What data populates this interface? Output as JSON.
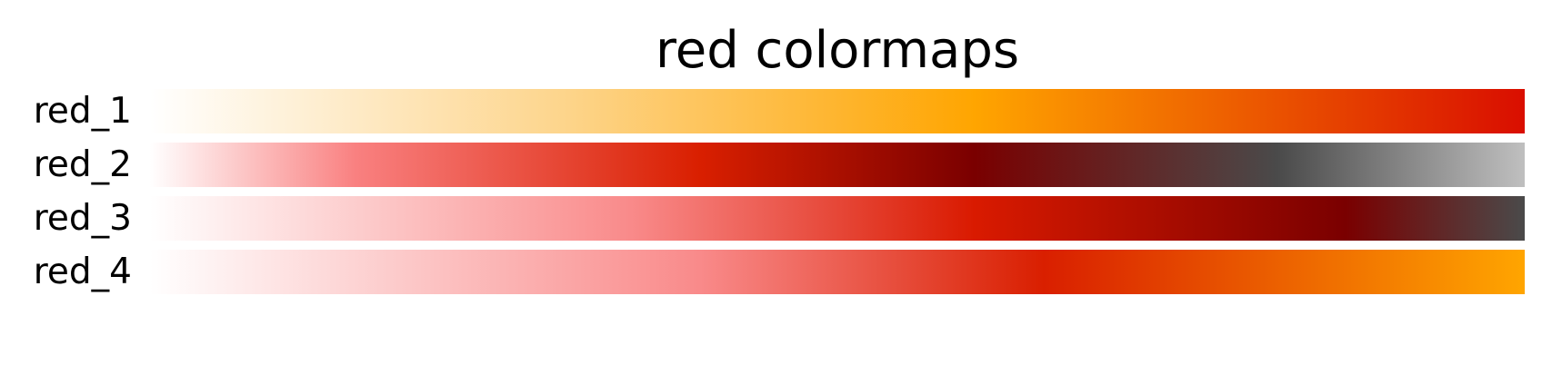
{
  "title": "red colormaps",
  "colormaps": [
    {
      "name": "red_1",
      "stops": [
        {
          "pos": 0.0,
          "color": "#ffffff"
        },
        {
          "pos": 0.3,
          "color": "#fdd58c"
        },
        {
          "pos": 0.6,
          "color": "#ffa500"
        },
        {
          "pos": 1.0,
          "color": "#d90e00"
        }
      ]
    },
    {
      "name": "red_2",
      "stops": [
        {
          "pos": 0.0,
          "color": "#ffffff"
        },
        {
          "pos": 0.15,
          "color": "#f98080"
        },
        {
          "pos": 0.4,
          "color": "#d91f00"
        },
        {
          "pos": 0.6,
          "color": "#7a0000"
        },
        {
          "pos": 0.82,
          "color": "#4a4a4a"
        },
        {
          "pos": 1.0,
          "color": "#bfbfbf"
        }
      ]
    },
    {
      "name": "red_3",
      "stops": [
        {
          "pos": 0.0,
          "color": "#ffffff"
        },
        {
          "pos": 0.35,
          "color": "#f98a8a"
        },
        {
          "pos": 0.6,
          "color": "#d91a00"
        },
        {
          "pos": 0.87,
          "color": "#7a0000"
        },
        {
          "pos": 1.0,
          "color": "#4a4a4a"
        }
      ]
    },
    {
      "name": "red_4",
      "stops": [
        {
          "pos": 0.0,
          "color": "#ffffff"
        },
        {
          "pos": 0.4,
          "color": "#f98a8a"
        },
        {
          "pos": 0.65,
          "color": "#d91f00"
        },
        {
          "pos": 1.0,
          "color": "#ffa500"
        }
      ]
    }
  ]
}
